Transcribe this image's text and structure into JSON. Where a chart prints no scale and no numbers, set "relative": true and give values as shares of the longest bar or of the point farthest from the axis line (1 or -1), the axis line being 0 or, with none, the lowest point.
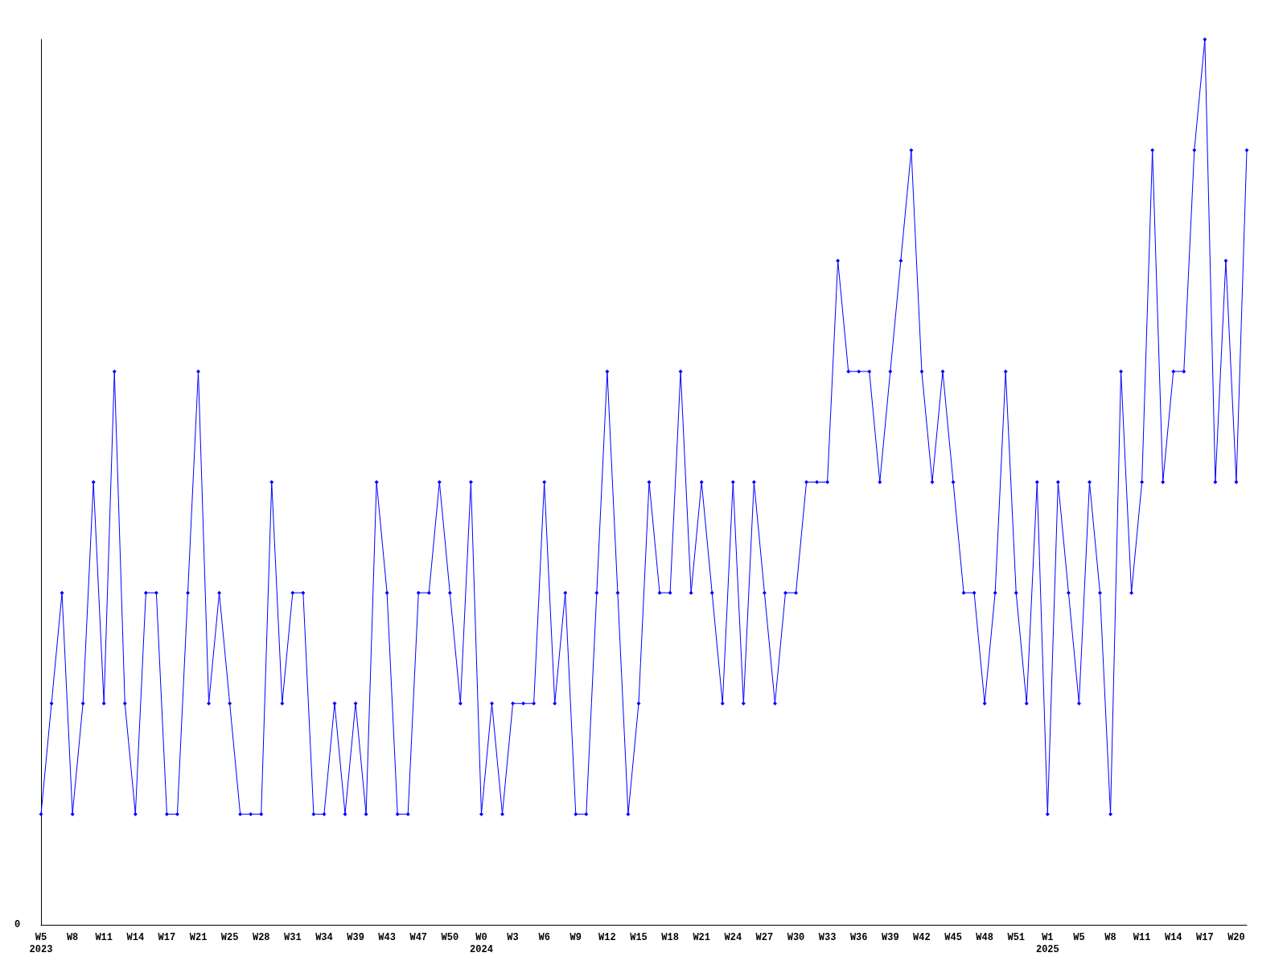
{
  "chart_data": {
    "type": "line",
    "relative": true,
    "annotations": [
      "0"
    ],
    "marker": "diamond",
    "line_style": "solid",
    "grid": false,
    "categories": [
      "W5\n2023",
      null,
      null,
      "W8",
      null,
      null,
      "W11",
      null,
      null,
      "W14",
      null,
      null,
      "W17",
      null,
      null,
      "W21",
      null,
      null,
      "W25",
      null,
      null,
      "W28",
      null,
      null,
      "W31",
      null,
      null,
      "W34",
      null,
      null,
      "W39",
      null,
      null,
      "W43",
      null,
      null,
      "W47",
      null,
      null,
      "W50",
      null,
      null,
      "W0\n2024",
      null,
      null,
      "W3",
      null,
      null,
      "W6",
      null,
      null,
      "W9",
      null,
      null,
      "W12",
      null,
      null,
      "W15",
      null,
      null,
      "W18",
      null,
      null,
      "W21",
      null,
      null,
      "W24",
      null,
      null,
      "W27",
      null,
      null,
      "W30",
      null,
      null,
      "W33",
      null,
      null,
      "W36",
      null,
      null,
      "W39",
      null,
      null,
      "W42",
      null,
      null,
      "W45",
      null,
      null,
      "W48",
      null,
      null,
      "W51",
      null,
      null,
      "W1\n2025",
      null,
      null,
      "W5",
      null,
      null,
      "W8",
      null,
      null,
      "W11",
      null,
      null,
      "W14",
      null,
      null,
      "W17",
      null,
      null,
      "W20",
      null
    ],
    "series": [
      {
        "color": "#0000ff",
        "values": [
          0.125,
          0.25,
          0.375,
          0.125,
          0.25,
          0.5,
          0.25,
          0.625,
          0.25,
          0.125,
          0.375,
          0.375,
          0.125,
          0.125,
          0.375,
          0.625,
          0.25,
          0.375,
          0.25,
          0.125,
          0.125,
          0.125,
          0.5,
          0.25,
          0.375,
          0.375,
          0.125,
          0.125,
          0.25,
          0.125,
          0.25,
          0.125,
          0.5,
          0.375,
          0.125,
          0.125,
          0.375,
          0.375,
          0.5,
          0.375,
          0.25,
          0.5,
          0.125,
          0.25,
          0.125,
          0.25,
          0.25,
          0.25,
          0.5,
          0.25,
          0.375,
          0.125,
          0.125,
          0.375,
          0.625,
          0.375,
          0.125,
          0.25,
          0.5,
          0.375,
          0.375,
          0.625,
          0.375,
          0.5,
          0.375,
          0.25,
          0.5,
          0.25,
          0.5,
          0.375,
          0.25,
          0.375,
          0.375,
          0.5,
          0.5,
          0.5,
          0.75,
          0.625,
          0.625,
          0.625,
          0.5,
          0.625,
          0.75,
          0.875,
          0.625,
          0.5,
          0.625,
          0.5,
          0.375,
          0.375,
          0.25,
          0.375,
          0.625,
          0.375,
          0.25,
          0.5,
          0.125,
          0.5,
          0.375,
          0.25,
          0.5,
          0.375,
          0.125,
          0.625,
          0.375,
          0.5,
          0.875,
          0.5,
          0.625,
          0.625,
          0.875,
          1,
          0.5,
          0.75,
          0.5,
          0.875
        ]
      }
    ]
  }
}
